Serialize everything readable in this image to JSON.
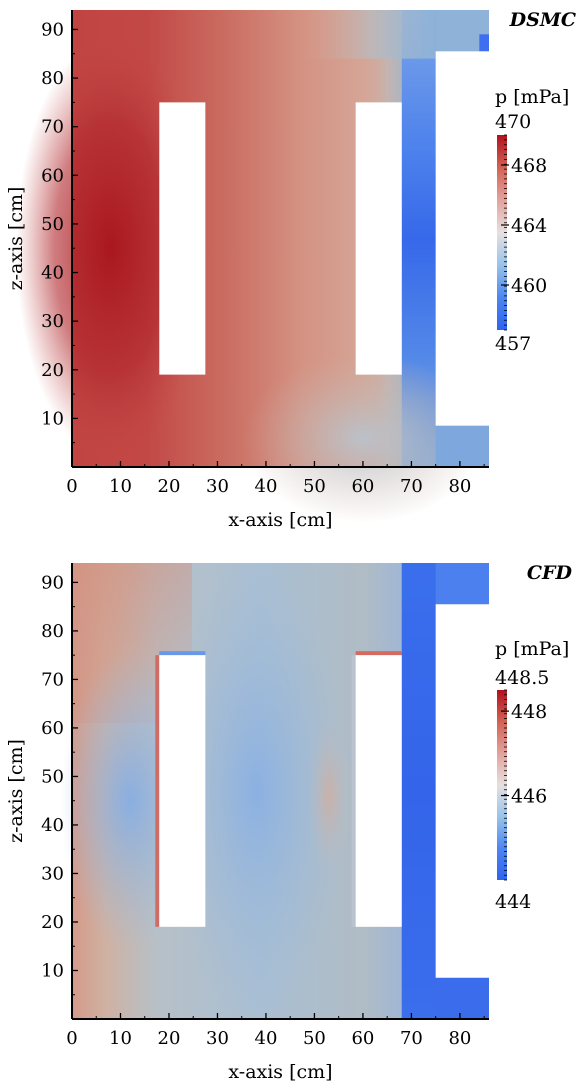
{
  "chart_data": [
    {
      "type": "heatmap",
      "title": "DSMC",
      "xlabel": "x-axis [cm]",
      "ylabel": "z-axis [cm]",
      "xlim": [
        0,
        86
      ],
      "ylim": [
        0,
        94
      ],
      "x_ticks": [
        0,
        10,
        20,
        30,
        40,
        50,
        60,
        70,
        80
      ],
      "y_ticks": [
        10,
        20,
        30,
        40,
        50,
        60,
        70,
        80,
        90
      ],
      "obstacles": [
        {
          "x0": 18,
          "x1": 27.5,
          "z0": 19,
          "z1": 75
        },
        {
          "x0": 58.5,
          "x1": 68,
          "z0": 19,
          "z1": 75
        }
      ],
      "cutout": {
        "x0": 75,
        "x1": 86,
        "z0": 8.5,
        "z1": 85.5
      },
      "colorbar": {
        "label": "p [mPa]",
        "min": 457,
        "max": 470,
        "min_label": "457",
        "max_label": "470",
        "ticks": [
          460,
          464,
          468
        ],
        "colors": [
          "#2f63ee",
          "#4d86f0",
          "#99c3e9",
          "#e6e0e0",
          "#e3a29d",
          "#d16255",
          "#b1111d"
        ]
      },
      "field_note": "high pressure near x=0, decreasing toward x=86"
    },
    {
      "type": "heatmap",
      "title": "CFD",
      "xlabel": "x-axis [cm]",
      "ylabel": "z-axis [cm]",
      "xlim": [
        0,
        86
      ],
      "ylim": [
        0,
        94
      ],
      "x_ticks": [
        0,
        10,
        20,
        30,
        40,
        50,
        60,
        70,
        80
      ],
      "y_ticks": [
        10,
        20,
        30,
        40,
        50,
        60,
        70,
        80,
        90
      ],
      "obstacles": [
        {
          "x0": 18,
          "x1": 27.5,
          "z0": 19,
          "z1": 75
        },
        {
          "x0": 58.5,
          "x1": 68,
          "z0": 19,
          "z1": 75
        }
      ],
      "cutout": {
        "x0": 75,
        "x1": 86,
        "z0": 8.5,
        "z1": 85.5
      },
      "colorbar": {
        "label": "p [mPa]",
        "min": 444,
        "max": 448.5,
        "min_label": "444",
        "max_label": "448.5",
        "ticks": [
          446,
          448
        ],
        "colors": [
          "#2f63ee",
          "#4d86f0",
          "#99c3e9",
          "#e6e0e0",
          "#e3a29d",
          "#d16255",
          "#b1111d"
        ]
      },
      "field_note": "moderate pressure near left wall, low pressure near right channel"
    }
  ]
}
